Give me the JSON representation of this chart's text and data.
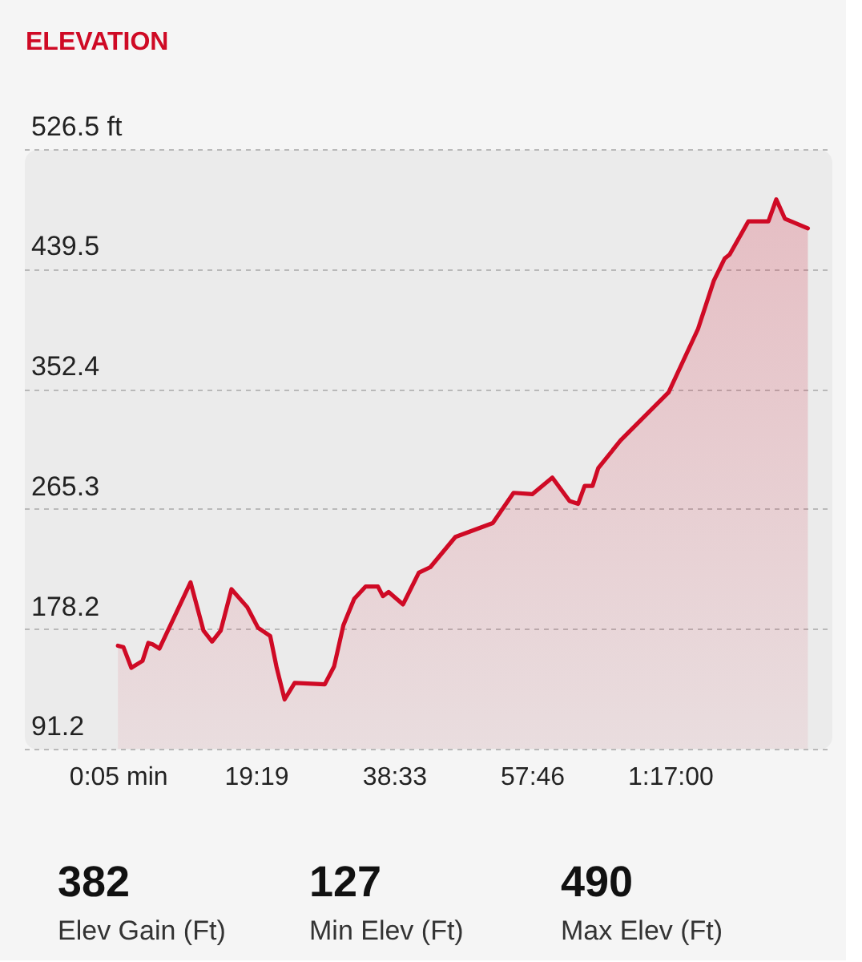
{
  "chart_data": {
    "type": "area",
    "title": "ELEVATION",
    "x": [
      0.08,
      0.84,
      1.95,
      3.51,
      4.31,
      4.92,
      5.87,
      10.2,
      12.0,
      13.2,
      14.4,
      15.9,
      18.1,
      19.6,
      21.3,
      22.2,
      23.3,
      24.7,
      28.9,
      30.2,
      31.5,
      33.0,
      34.6,
      36.3,
      37.0,
      37.8,
      39.8,
      42.0,
      43.6,
      47.1,
      52.3,
      55.2,
      57.8,
      60.6,
      63.0,
      64.2,
      65.1,
      66.2,
      67.0,
      70.1,
      76.8,
      80.9,
      83.1,
      84.6,
      85.3,
      87.9,
      90.7,
      91.8,
      93.0,
      96.2
    ],
    "series": [
      {
        "color": "#cf0a25",
        "values": [
          166,
          165,
          150,
          155,
          168,
          167,
          164,
          212,
          177,
          169,
          177,
          207,
          194,
          179,
          173,
          150,
          127,
          139,
          138,
          151,
          181,
          200,
          209,
          209,
          202,
          205,
          196,
          219,
          223,
          245,
          255,
          277,
          276,
          288,
          271,
          269,
          282,
          282,
          295,
          315,
          350,
          396,
          431,
          447,
          450,
          474,
          474,
          490,
          476,
          469
        ]
      }
    ],
    "xlim": [
      -13,
      99.5
    ],
    "xticks": [
      {
        "value": 0.0833,
        "label": "0:05 min"
      },
      {
        "value": 19.3167,
        "label": "19:19"
      },
      {
        "value": 38.55,
        "label": "38:33"
      },
      {
        "value": 57.7667,
        "label": "57:46"
      },
      {
        "value": 77.0,
        "label": "1:17:00"
      }
    ],
    "ylim": [
      91.2,
      526.5
    ],
    "yticks": [
      91.2,
      178.2,
      265.3,
      352.4,
      439.5,
      {
        "value": 526.5,
        "label": "526.5 ft"
      }
    ],
    "grid": "y",
    "annotations": [
      "382",
      "Elev Gain (Ft)",
      "127",
      "Min Elev (Ft)",
      "490",
      "Max Elev (Ft)"
    ]
  }
}
